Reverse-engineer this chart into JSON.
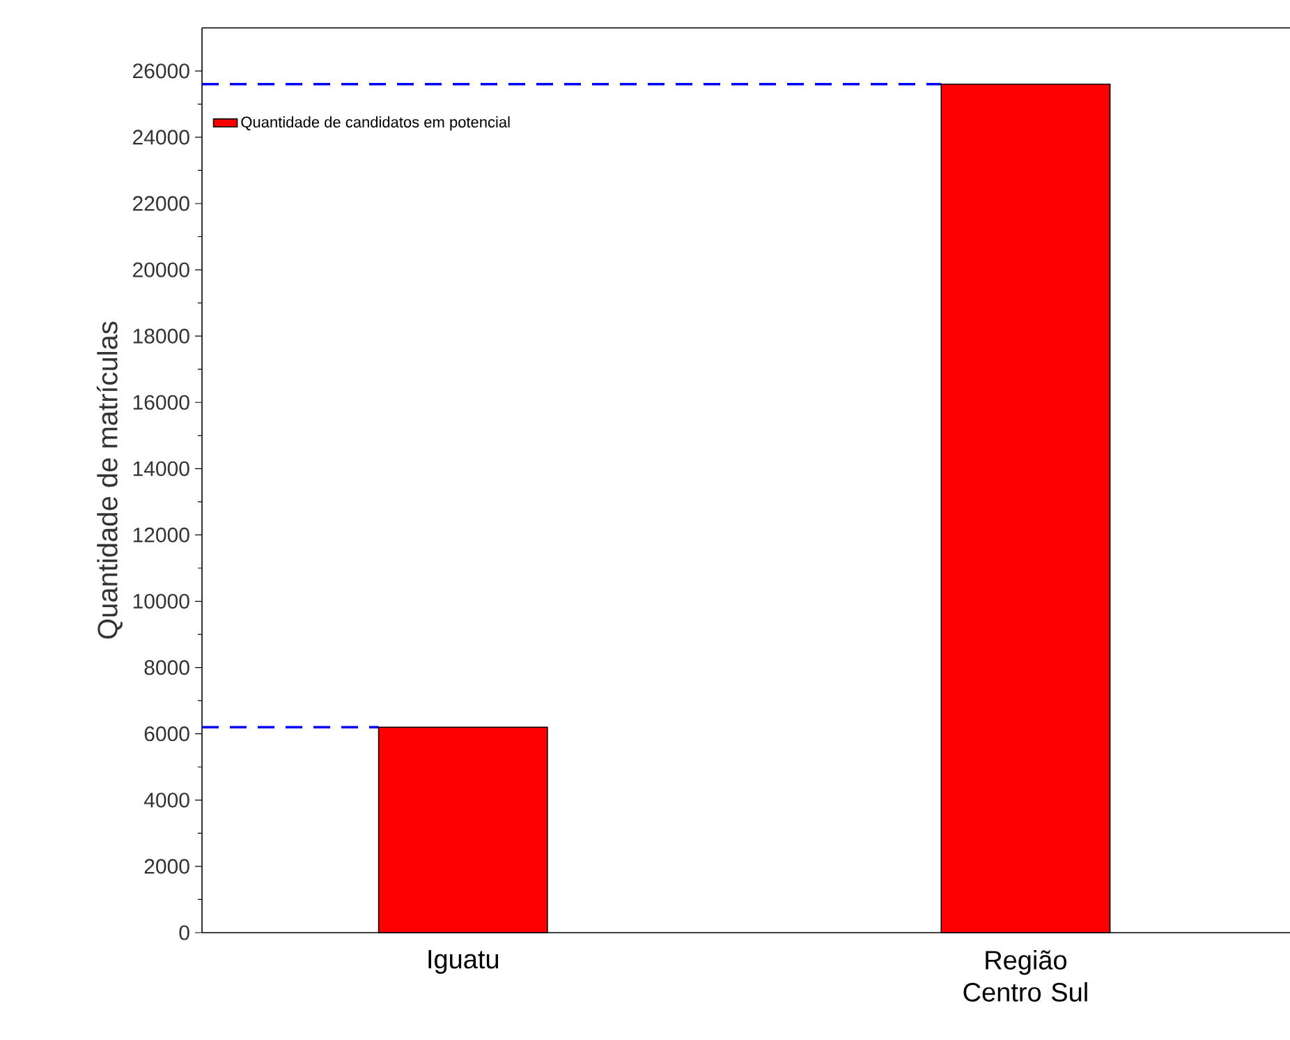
{
  "chart_data": {
    "type": "bar",
    "ylabel": "Quantidade de matrículas",
    "categories": [
      "Iguatu",
      "Região Centro Sul"
    ],
    "series": [
      {
        "name": "Quantidade de candidatos em potencial",
        "color": "#ff0000",
        "values": [
          6200,
          25600
        ]
      }
    ],
    "ylim": [
      0,
      27300
    ],
    "yticks": [
      0,
      2000,
      4000,
      6000,
      8000,
      10000,
      12000,
      14000,
      16000,
      18000,
      20000,
      22000,
      24000,
      26000
    ],
    "ref_lines": [
      {
        "axis": "y",
        "value": 6200,
        "color": "#0000ff",
        "line_style": "dashed"
      },
      {
        "axis": "y",
        "value": 25600,
        "color": "#0000ff",
        "line_style": "dashed"
      }
    ],
    "legend": "top left",
    "grid": false
  }
}
